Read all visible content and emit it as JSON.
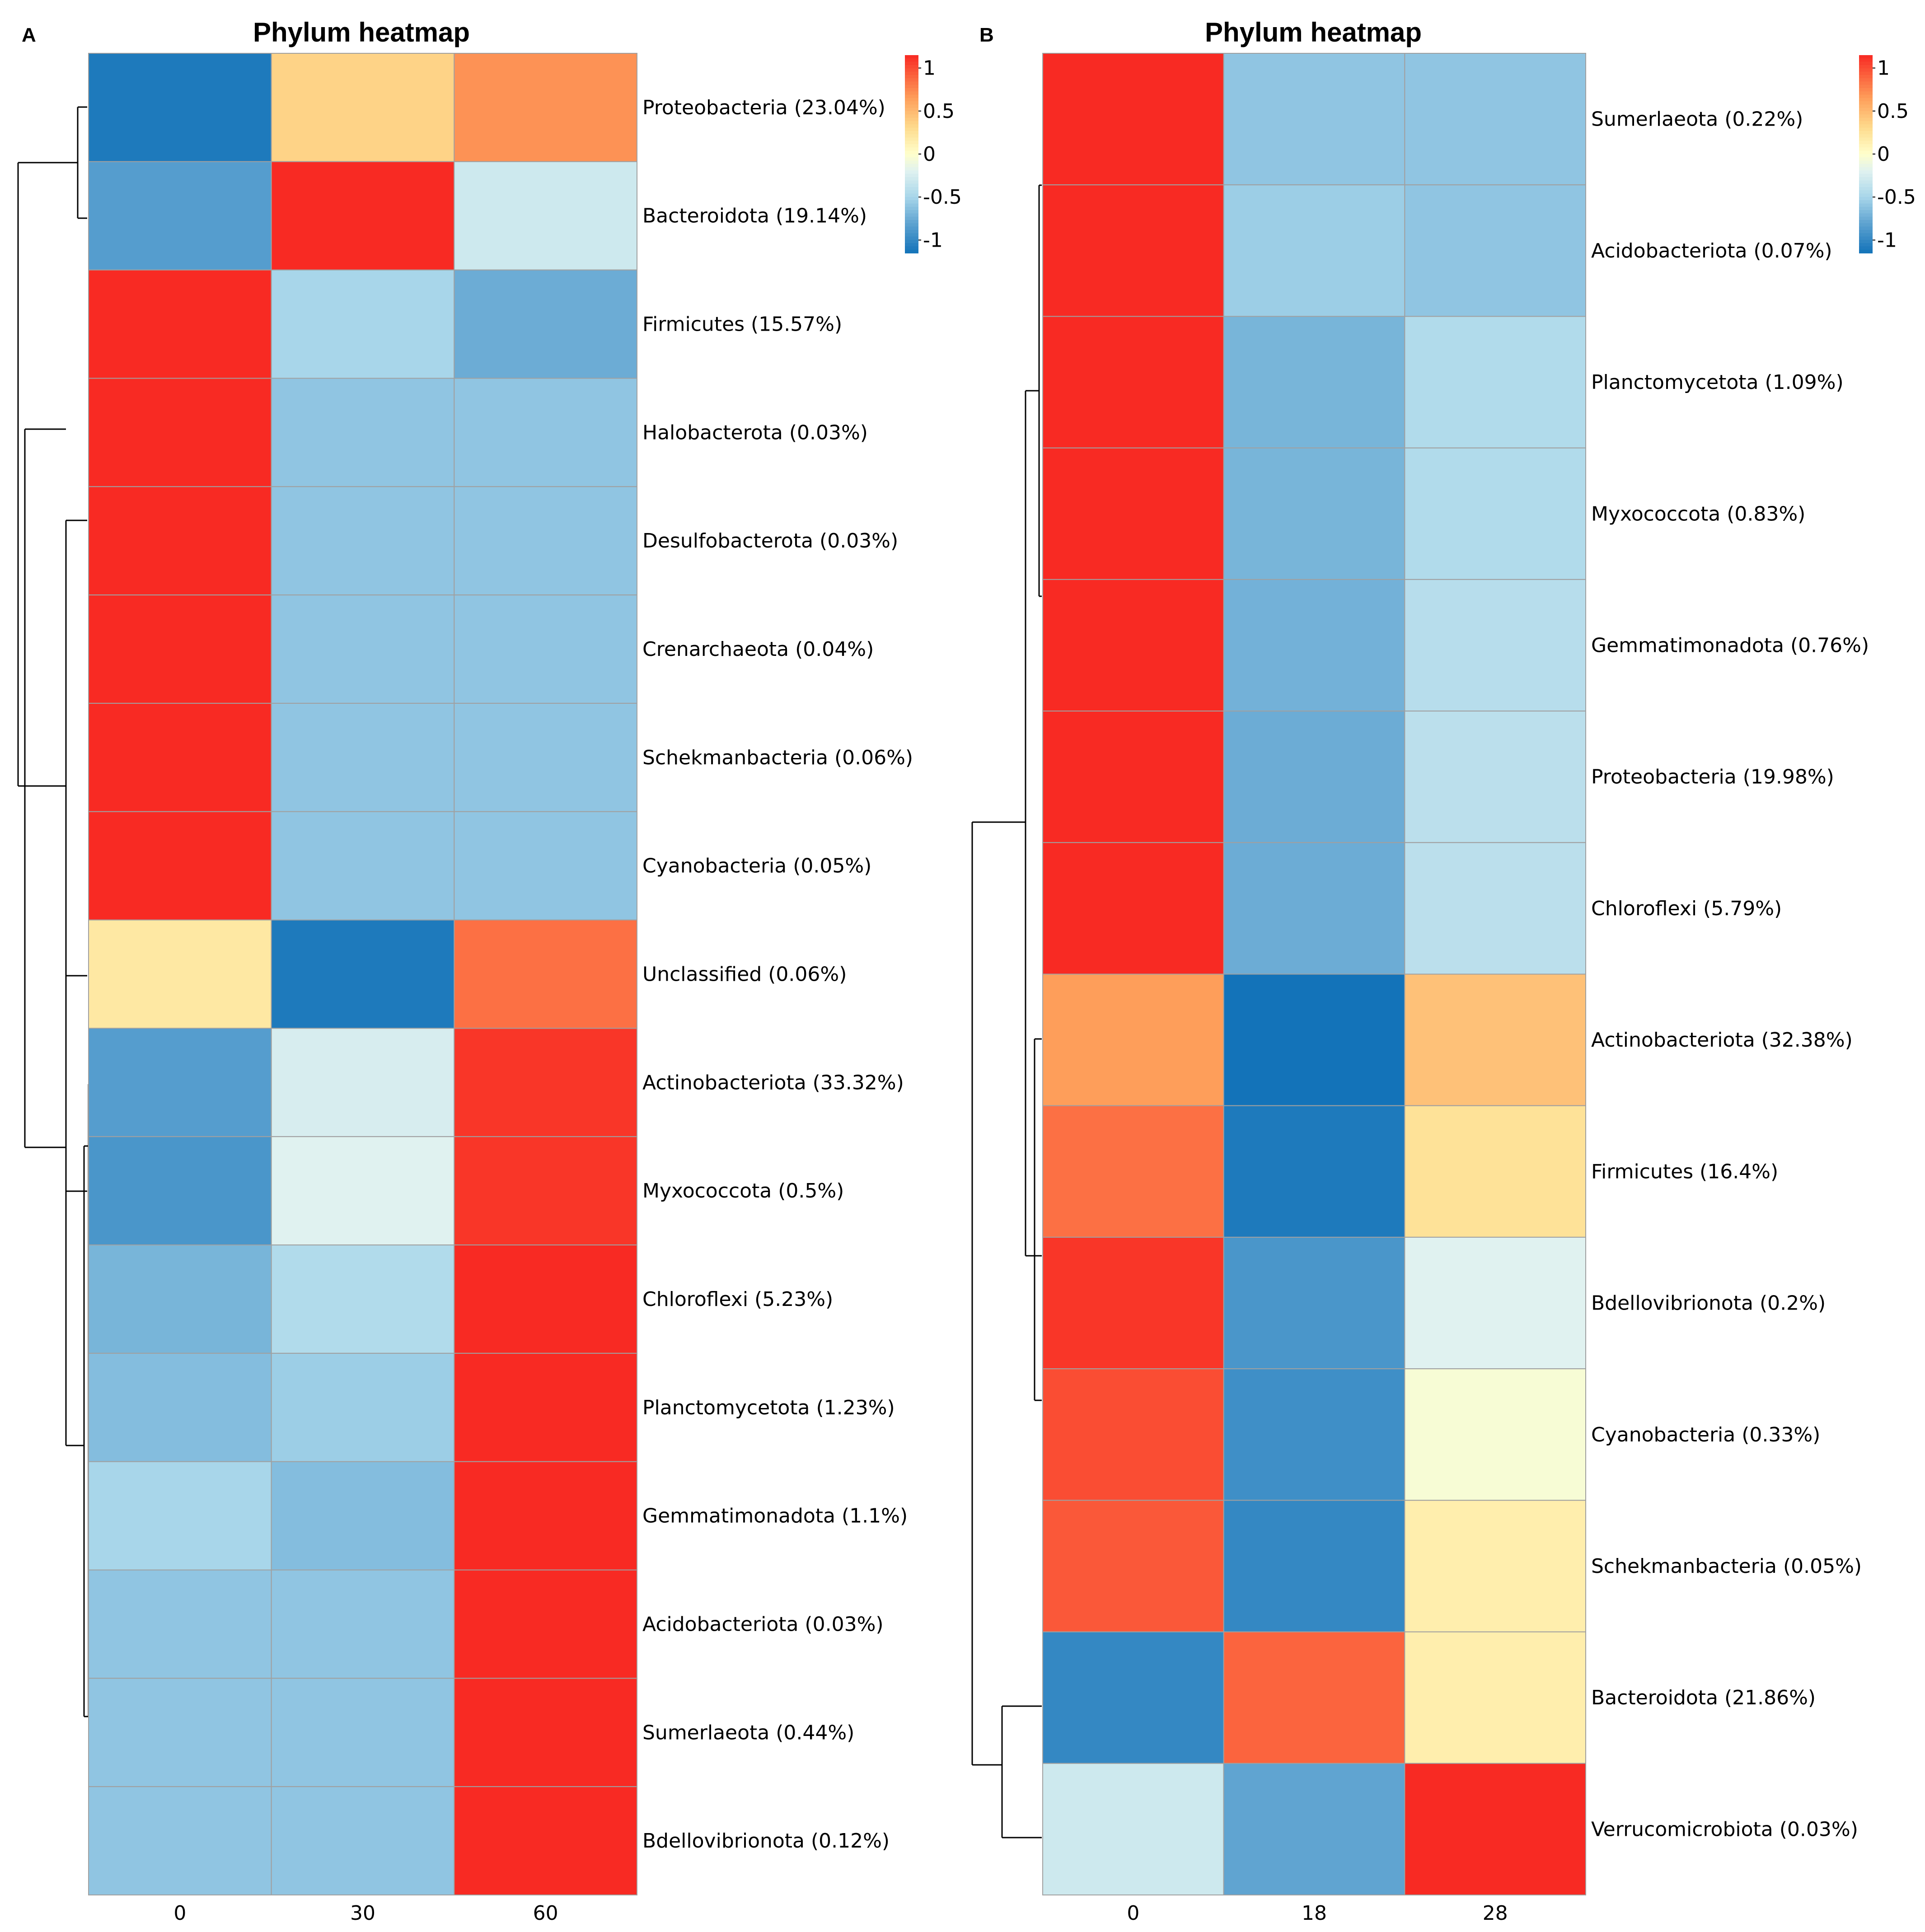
{
  "chart_data": [
    {
      "panel": "A",
      "type": "heatmap",
      "title": "Phylum heatmap",
      "columns": [
        "0",
        "30",
        "60"
      ],
      "rows": [
        "Proteobacteria (23.04%)",
        "Bacteroidota (19.14%)",
        "Firmicutes (15.57%)",
        "Halobacterota (0.03%)",
        "Desulfobacterota (0.03%)",
        "Crenarchaeota (0.04%)",
        "Schekmanbacteria (0.06%)",
        "Cyanobacteria (0.05%)",
        "Unclassified (0.06%)",
        "Actinobacteriota (33.32%)",
        "Myxococcota (0.5%)",
        "Chloroflexi (5.23%)",
        "Planctomycetota (1.23%)",
        "Gemmatimonadota (1.1%)",
        "Acidobacteriota (0.03%)",
        "Sumerlaeota (0.44%)",
        "Bdellovibrionota (0.12%)"
      ],
      "values": [
        [
          -1.1,
          0.35,
          0.7
        ],
        [
          -0.85,
          1.15,
          -0.3
        ],
        [
          1.15,
          -0.5,
          -0.75
        ],
        [
          1.15,
          -0.6,
          -0.6
        ],
        [
          1.15,
          -0.6,
          -0.6
        ],
        [
          1.15,
          -0.6,
          -0.6
        ],
        [
          1.15,
          -0.6,
          -0.6
        ],
        [
          1.15,
          -0.6,
          -0.6
        ],
        [
          0.2,
          -1.1,
          0.85
        ],
        [
          -0.85,
          -0.25,
          1.1
        ],
        [
          -0.9,
          -0.2,
          1.1
        ],
        [
          -0.7,
          -0.45,
          1.15
        ],
        [
          -0.65,
          -0.55,
          1.15
        ],
        [
          -0.5,
          -0.65,
          1.15
        ],
        [
          -0.6,
          -0.6,
          1.15
        ],
        [
          -0.6,
          -0.6,
          1.15
        ],
        [
          -0.6,
          -0.6,
          1.15
        ]
      ],
      "legend": {
        "ticks": [
          1,
          0.5,
          0,
          -0.5,
          -1
        ],
        "tick_labels": [
          "1",
          "0.5",
          "0",
          "-0.5",
          "-1"
        ],
        "range": [
          -1.15,
          1.15
        ]
      }
    },
    {
      "panel": "B",
      "type": "heatmap",
      "title": "Phylum heatmap",
      "columns": [
        "0",
        "18",
        "28"
      ],
      "rows": [
        "Sumerlaeota (0.22%)",
        "Acidobacteriota (0.07%)",
        "Planctomycetota (1.09%)",
        "Myxococcota (0.83%)",
        "Gemmatimonadota (0.76%)",
        "Proteobacteria (19.98%)",
        "Chloroflexi (5.79%)",
        "Actinobacteriota (32.38%)",
        "Firmicutes (16.4%)",
        "Bdellovibrionota (0.2%)",
        "Cyanobacteria (0.33%)",
        "Schekmanbacteria (0.05%)",
        "Bacteroidota (21.86%)",
        "Verrucomicrobiota (0.03%)"
      ],
      "values": [
        [
          1.15,
          -0.6,
          -0.6
        ],
        [
          1.15,
          -0.55,
          -0.6
        ],
        [
          1.15,
          -0.7,
          -0.45
        ],
        [
          1.15,
          -0.7,
          -0.45
        ],
        [
          1.15,
          -0.72,
          -0.42
        ],
        [
          1.15,
          -0.75,
          -0.4
        ],
        [
          1.15,
          -0.75,
          -0.4
        ],
        [
          0.65,
          -1.15,
          0.45
        ],
        [
          0.85,
          -1.1,
          0.25
        ],
        [
          1.1,
          -0.9,
          -0.2
        ],
        [
          1.0,
          -0.95,
          -0.05
        ],
        [
          0.95,
          -1.0,
          0.15
        ],
        [
          -1.0,
          0.9,
          0.15
        ],
        [
          -0.3,
          -0.8,
          1.15
        ]
      ],
      "legend": {
        "ticks": [
          1,
          0.5,
          0,
          -0.5,
          -1
        ],
        "tick_labels": [
          "1",
          "0.5",
          "0",
          "-0.5",
          "-1"
        ],
        "range": [
          -1.15,
          1.15
        ]
      }
    }
  ],
  "panels": [
    {
      "letter": "A"
    },
    {
      "letter": "B"
    }
  ]
}
